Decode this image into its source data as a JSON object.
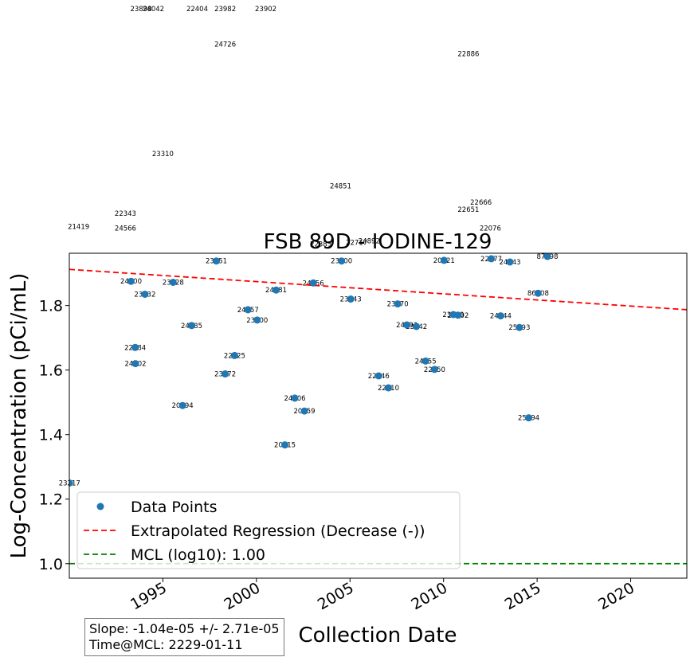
{
  "chart_data": {
    "type": "scatter",
    "title": "FSB 89D - IODINE-129",
    "xlabel": "Collection Date",
    "ylabel": "Log-Concentration (pCi/mL)",
    "xlim": [
      "1990-01-01",
      "2023-01-01"
    ],
    "ylim": [
      0.955,
      1.962
    ],
    "x_ticks": [
      "1995",
      "2000",
      "2005",
      "2010",
      "2015",
      "2020"
    ],
    "y_ticks": [
      "1.0",
      "1.2",
      "1.4",
      "1.6",
      "1.8"
    ],
    "grid": false,
    "legend_position": "lower-left",
    "legend": [
      {
        "label": "Data Points",
        "kind": "marker",
        "color": "#1f77b4"
      },
      {
        "label": "Extrapolated Regression (Decrease (-))",
        "kind": "dashed-line",
        "color": "#ff0000"
      },
      {
        "label": "MCL (log10): 1.00",
        "kind": "dashed-line",
        "color": "#008000"
      }
    ],
    "series": [
      {
        "name": "Data Points",
        "color": "#1f77b4",
        "points": [
          {
            "x": "1990-01-05",
            "y": 1.25,
            "label": "23217"
          },
          {
            "x": "1993-04-20",
            "y": 1.875,
            "label": "24600"
          },
          {
            "x": "1993-07-10",
            "y": 1.67,
            "label": "22484"
          },
          {
            "x": "1993-07-15",
            "y": 1.62,
            "label": "24802"
          },
          {
            "x": "1994-01-15",
            "y": 1.835,
            "label": "23132"
          },
          {
            "x": "1995-07-20",
            "y": 1.872,
            "label": "23628"
          },
          {
            "x": "1996-01-20",
            "y": 1.49,
            "label": "20994"
          },
          {
            "x": "1996-07-15",
            "y": 1.738,
            "label": "24085"
          },
          {
            "x": "1997-11-10",
            "y": 1.938,
            "label": "23051"
          },
          {
            "x": "1998-05-01",
            "y": 1.588,
            "label": "23072"
          },
          {
            "x": "1998-11-01",
            "y": 1.645,
            "label": "22525"
          },
          {
            "x": "1999-07-20",
            "y": 1.787,
            "label": "24757"
          },
          {
            "x": "2000-01-15",
            "y": 1.755,
            "label": "23500"
          },
          {
            "x": "2001-01-20",
            "y": 1.848,
            "label": "24781"
          },
          {
            "x": "2001-07-10",
            "y": 1.368,
            "label": "20415"
          },
          {
            "x": "2002-01-20",
            "y": 1.513,
            "label": "24306"
          },
          {
            "x": "2002-07-25",
            "y": 1.473,
            "label": "20659"
          },
          {
            "x": "2003-01-15",
            "y": 1.87,
            "label": "24656"
          },
          {
            "x": "2003-06-10",
            "y": 1.99,
            "label": "22383"
          },
          {
            "x": "2004-07-20",
            "y": 1.938,
            "label": "23000"
          },
          {
            "x": "2005-01-15",
            "y": 1.82,
            "label": "23743"
          },
          {
            "x": "2005-05-10",
            "y": 1.995,
            "label": "22717"
          },
          {
            "x": "2006-01-10",
            "y": 2.0,
            "label": "24892"
          },
          {
            "x": "2006-07-15",
            "y": 1.582,
            "label": "22146"
          },
          {
            "x": "2007-01-20",
            "y": 1.545,
            "label": "22210"
          },
          {
            "x": "2007-07-20",
            "y": 1.805,
            "label": "23070"
          },
          {
            "x": "2008-01-15",
            "y": 1.74,
            "label": "24593"
          },
          {
            "x": "2008-07-20",
            "y": 1.735,
            "label": "23242"
          },
          {
            "x": "2009-01-15",
            "y": 1.628,
            "label": "24755"
          },
          {
            "x": "2009-07-10",
            "y": 1.602,
            "label": "22750"
          },
          {
            "x": "2010-01-10",
            "y": 1.94,
            "label": "20621"
          },
          {
            "x": "2010-07-10",
            "y": 1.772,
            "label": "23619"
          },
          {
            "x": "2010-10-10",
            "y": 1.77,
            "label": "23802"
          },
          {
            "x": "2012-07-20",
            "y": 1.945,
            "label": "22077"
          },
          {
            "x": "2013-01-20",
            "y": 1.768,
            "label": "24044"
          },
          {
            "x": "2013-07-20",
            "y": 1.935,
            "label": "24043"
          },
          {
            "x": "2014-01-20",
            "y": 1.732,
            "label": "25193"
          },
          {
            "x": "2014-07-20",
            "y": 1.452,
            "label": "25194"
          },
          {
            "x": "2015-01-20",
            "y": 1.838,
            "label": "86208"
          },
          {
            "x": "2015-07-20",
            "y": 1.952,
            "label": "87698"
          }
        ]
      },
      {
        "name": "Extrapolated Regression (Decrease (-))",
        "color": "#ff0000",
        "line": [
          {
            "x": "1990-01-01",
            "y": 1.912
          },
          {
            "x": "2023-01-01",
            "y": 1.787
          }
        ]
      },
      {
        "name": "MCL (log10): 1.00",
        "color": "#008000",
        "line": [
          {
            "x": "1990-01-01",
            "y": 1.0
          },
          {
            "x": "2023-01-01",
            "y": 1.0
          }
        ]
      }
    ],
    "offscale_labels": [
      {
        "x": "1994-07-01",
        "y": 4.48,
        "label": "24042"
      },
      {
        "x": "1996-11-01",
        "y": 3.21,
        "label": "22404"
      },
      {
        "x": "1993-11-01",
        "y": 2.87,
        "label": "23898"
      },
      {
        "x": "1998-05-01",
        "y": 2.89,
        "label": "23982"
      },
      {
        "x": "2000-07-01",
        "y": 2.72,
        "label": "23902"
      },
      {
        "x": "1998-05-01",
        "y": 2.61,
        "label": "24726"
      },
      {
        "x": "2011-05-01",
        "y": 2.58,
        "label": "22886"
      },
      {
        "x": "1995-01-01",
        "y": 2.27,
        "label": "23310"
      },
      {
        "x": "2004-07-01",
        "y": 2.17,
        "label": "24851"
      },
      {
        "x": "2012-01-01",
        "y": 2.12,
        "label": "22666"
      },
      {
        "x": "1993-01-01",
        "y": 2.085,
        "label": "22343"
      },
      {
        "x": "1993-01-01",
        "y": 2.04,
        "label": "24566"
      },
      {
        "x": "1990-07-01",
        "y": 2.045,
        "label": "21419"
      },
      {
        "x": "2011-05-01",
        "y": 2.098,
        "label": "22651"
      },
      {
        "x": "2012-07-01",
        "y": 2.04,
        "label": "22076"
      }
    ]
  },
  "stats": {
    "slope": "Slope: -1.04e-05 +/- 2.71e-05",
    "time_at_mcl": "Time@MCL: 2229-01-11"
  }
}
